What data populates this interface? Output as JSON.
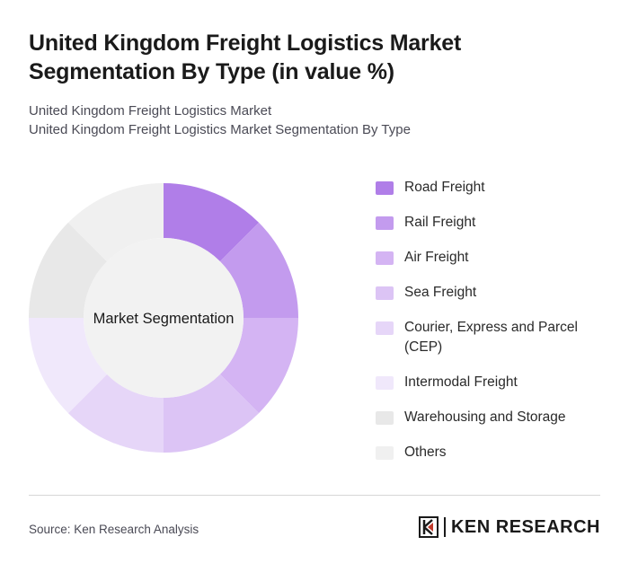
{
  "header": {
    "title": "United Kingdom Freight Logistics Market Segmentation By Type (in value %)",
    "subtitle_line1": "United Kingdom Freight Logistics Market",
    "subtitle_line2": "United Kingdom Freight Logistics Market Segmentation By Type"
  },
  "chart_data": {
    "type": "pie",
    "variant": "donut",
    "center_label": "Market Segmentation",
    "categories": [
      "Road Freight",
      "Rail Freight",
      "Air Freight",
      "Sea Freight",
      "Courier, Express and Parcel (CEP)",
      "Intermodal Freight",
      "Warehousing and Storage",
      "Others"
    ],
    "values": [
      12.5,
      12.5,
      12.5,
      12.5,
      12.5,
      12.5,
      12.5,
      12.5
    ],
    "colors": [
      "#b07ee8",
      "#c39bee",
      "#d4b4f3",
      "#dcc4f5",
      "#e6d6f8",
      "#f0e8fb",
      "#e8e8e8",
      "#f0f0f0"
    ],
    "legend_position": "right"
  },
  "footer": {
    "source": "Source: Ken Research Analysis",
    "logo_text": "KEN RESEARCH",
    "logo_icon": "ken-research-logo-icon"
  }
}
